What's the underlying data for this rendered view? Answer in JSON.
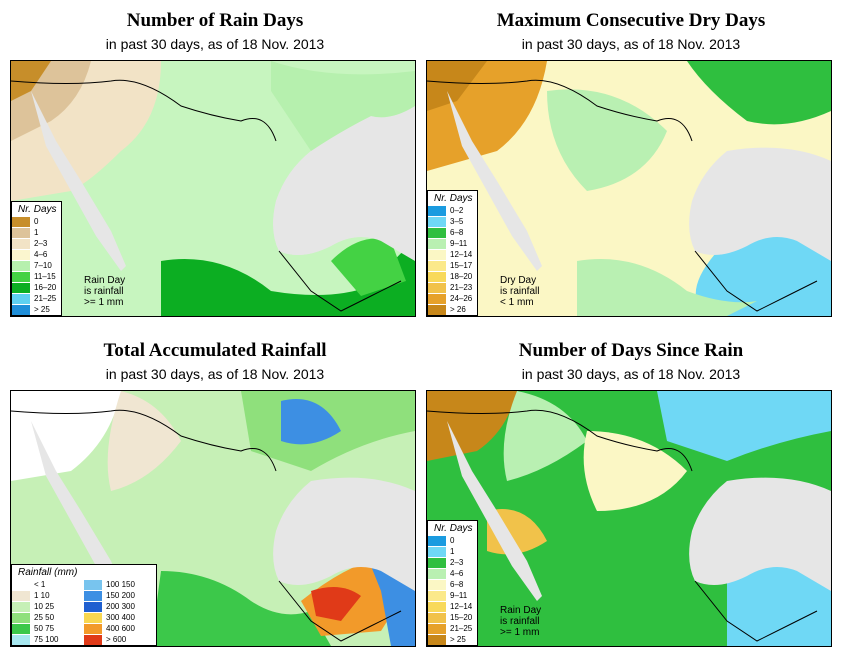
{
  "panels": [
    {
      "title": "Number of Rain Days",
      "subtitle": "in past 30 days, as of  18 Nov. 2013",
      "legend_title": "Nr. Days",
      "legend": [
        {
          "label": "0",
          "color": "#c78e2a"
        },
        {
          "label": "1",
          "color": "#ddc39a"
        },
        {
          "label": "2–3",
          "color": "#f2e3c6"
        },
        {
          "label": "4–6",
          "color": "#fbf6cf"
        },
        {
          "label": "7–10",
          "color": "#b6f0ae"
        },
        {
          "label": "11–15",
          "color": "#44d244"
        },
        {
          "label": "16–20",
          "color": "#0cae22"
        },
        {
          "label": "21–25",
          "color": "#5fd0f0"
        },
        {
          "label": "> 25",
          "color": "#1f8ed8"
        }
      ],
      "note": [
        "Rain Day",
        "is rainfall",
        ">= 1 mm"
      ]
    },
    {
      "title": "Maximum Consecutive Dry Days",
      "subtitle": "in past 30 days, as of  18 Nov. 2013",
      "legend_title": "Nr. Days",
      "legend": [
        {
          "label": "0–2",
          "color": "#1a9be0"
        },
        {
          "label": "3–5",
          "color": "#6fd8f5"
        },
        {
          "label": "6–8",
          "color": "#2fbf3f"
        },
        {
          "label": "9–11",
          "color": "#b9f0b2"
        },
        {
          "label": "12–14",
          "color": "#fbf7c5"
        },
        {
          "label": "15–17",
          "color": "#fbe98a"
        },
        {
          "label": "18–20",
          "color": "#f8d95a"
        },
        {
          "label": "21–23",
          "color": "#f1c24a"
        },
        {
          "label": "24–26",
          "color": "#e6a12a"
        },
        {
          "label": "> 26",
          "color": "#c7871a"
        }
      ],
      "note": [
        "Dry Day",
        "is rainfall",
        "< 1 mm"
      ]
    },
    {
      "title": "Total Accumulated Rainfall",
      "subtitle": "in past 30 days, as of  18 Nov. 2013",
      "legend_title": "Rainfall (mm)",
      "legend": [
        {
          "label": "< 1",
          "color": "#ffffff"
        },
        {
          "label": "1   10",
          "color": "#f0e6d2"
        },
        {
          "label": "10   25",
          "color": "#c6f0b6"
        },
        {
          "label": "25   50",
          "color": "#8fe07c"
        },
        {
          "label": "50   75",
          "color": "#3cc84a"
        },
        {
          "label": "75   100",
          "color": "#a8e8f0"
        },
        {
          "label": "100   150",
          "color": "#78c4ee"
        },
        {
          "label": "150   200",
          "color": "#3d8fe3"
        },
        {
          "label": "200   300",
          "color": "#1f5fd0"
        },
        {
          "label": "300   400",
          "color": "#f8d750"
        },
        {
          "label": "400   600",
          "color": "#f29a2a"
        },
        {
          "label": "> 600",
          "color": "#e03a18"
        }
      ],
      "note": []
    },
    {
      "title": "Number of Days Since Rain",
      "subtitle": "in past 30 days, as of  18 Nov. 2013",
      "legend_title": "Nr. Days",
      "legend": [
        {
          "label": "0",
          "color": "#1a9be0"
        },
        {
          "label": "1",
          "color": "#6fd8f5"
        },
        {
          "label": "2–3",
          "color": "#2fbf3f"
        },
        {
          "label": "4–6",
          "color": "#b9f0b2"
        },
        {
          "label": "6–8",
          "color": "#fbf7c5"
        },
        {
          "label": "9–11",
          "color": "#fbe98a"
        },
        {
          "label": "12–14",
          "color": "#f8d95a"
        },
        {
          "label": "15–20",
          "color": "#f1c24a"
        },
        {
          "label": "21–25",
          "color": "#e6a12a"
        },
        {
          "label": "> 25",
          "color": "#c7871a"
        }
      ],
      "note": [
        "Rain Day",
        "is rainfall",
        ">= 1 mm"
      ]
    }
  ]
}
